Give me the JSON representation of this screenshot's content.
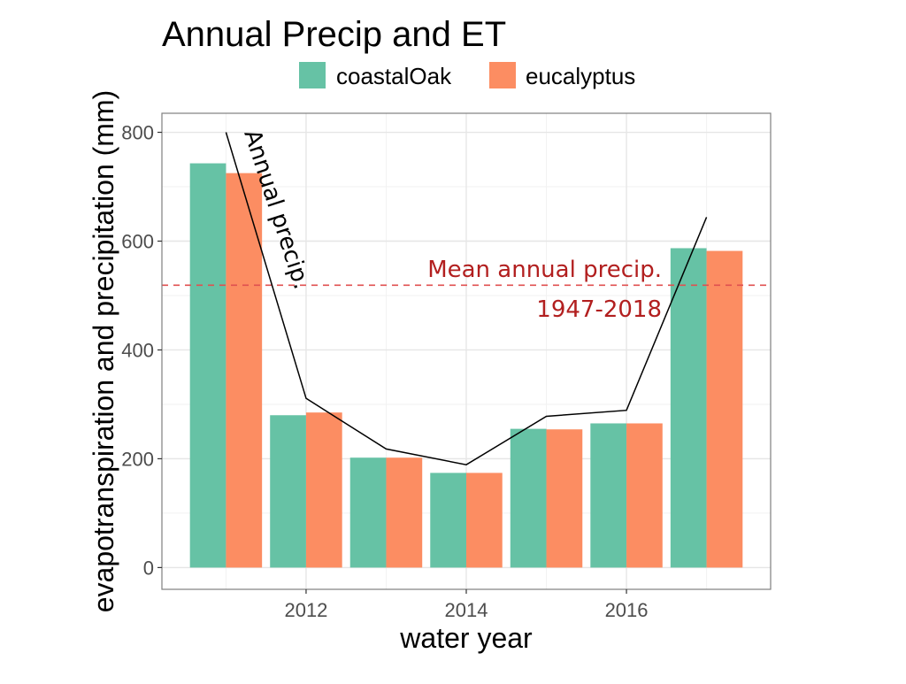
{
  "chart_data": {
    "type": "bar",
    "title": "Annual Precip and ET",
    "xlabel": "water year",
    "ylabel": "evapotranspiration and precipitation (mm)",
    "categories": [
      2011,
      2012,
      2013,
      2014,
      2015,
      2016,
      2017
    ],
    "xticks": [
      2012,
      2014,
      2016
    ],
    "xlim": [
      2010.2,
      2017.8
    ],
    "ylim": [
      -40,
      835
    ],
    "yticks": [
      0,
      200,
      400,
      600,
      800
    ],
    "grid": true,
    "legend_position": "top",
    "series": [
      {
        "name": "coastalOak",
        "color": "#66c2a5",
        "values": [
          743,
          280,
          202,
          174,
          255,
          265,
          587
        ]
      },
      {
        "name": "eucalyptus",
        "color": "#fc8d62",
        "values": [
          725,
          285,
          202,
          174,
          254,
          265,
          582
        ]
      }
    ],
    "line": {
      "label": "Annual precip.",
      "color": "#000000",
      "values": [
        800,
        311,
        218,
        189,
        278,
        289,
        644
      ]
    },
    "hline": {
      "value": 519,
      "label_line1": "Mean annual precip.",
      "label_line2": "1947-2018",
      "color": "#e05050",
      "label_color": "#b21f1f",
      "style": "dashed"
    }
  }
}
